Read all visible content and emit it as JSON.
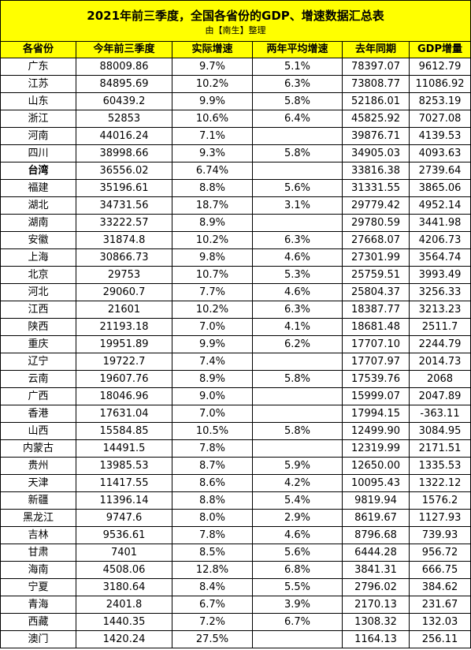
{
  "title": "2021年前三季度，全国各省份的GDP、增速数据汇总表",
  "subtitle": "由【南生】整理",
  "headers": [
    "各省份",
    "今年前三季度",
    "实际增速",
    "两年平均增速",
    "去年同期",
    "GDP增量"
  ],
  "rows": [
    {
      "prov": "广东",
      "gdp": "88009.86",
      "rate": "9.7%",
      "avg": "5.1%",
      "last": "78397.07",
      "inc": "9612.79"
    },
    {
      "prov": "江苏",
      "gdp": "84895.69",
      "rate": "10.2%",
      "avg": "6.3%",
      "last": "73808.77",
      "inc": "11086.92"
    },
    {
      "prov": "山东",
      "gdp": "60439.2",
      "rate": "9.9%",
      "avg": "5.8%",
      "last": "52186.01",
      "inc": "8253.19"
    },
    {
      "prov": "浙江",
      "gdp": "52853",
      "rate": "10.6%",
      "avg": "6.4%",
      "last": "45825.92",
      "inc": "7027.08"
    },
    {
      "prov": "河南",
      "gdp": "44016.24",
      "rate": "7.1%",
      "avg": "",
      "last": "39876.71",
      "inc": "4139.53"
    },
    {
      "prov": "四川",
      "gdp": "38998.66",
      "rate": "9.3%",
      "avg": "5.8%",
      "last": "34905.03",
      "inc": "4093.63"
    },
    {
      "prov": "台湾",
      "gdp": "36556.02",
      "rate": "6.74%",
      "avg": "",
      "last": "33816.38",
      "inc": "2739.64",
      "bold": true
    },
    {
      "prov": "福建",
      "gdp": "35196.61",
      "rate": "8.8%",
      "avg": "5.6%",
      "last": "31331.55",
      "inc": "3865.06"
    },
    {
      "prov": "湖北",
      "gdp": "34731.56",
      "rate": "18.7%",
      "avg": "3.1%",
      "last": "29779.42",
      "inc": "4952.14"
    },
    {
      "prov": "湖南",
      "gdp": "33222.57",
      "rate": "8.9%",
      "avg": "",
      "last": "29780.59",
      "inc": "3441.98"
    },
    {
      "prov": "安徽",
      "gdp": "31874.8",
      "rate": "10.2%",
      "avg": "6.3%",
      "last": "27668.07",
      "inc": "4206.73"
    },
    {
      "prov": "上海",
      "gdp": "30866.73",
      "rate": "9.8%",
      "avg": "4.6%",
      "last": "27301.99",
      "inc": "3564.74"
    },
    {
      "prov": "北京",
      "gdp": "29753",
      "rate": "10.7%",
      "avg": "5.3%",
      "last": "25759.51",
      "inc": "3993.49"
    },
    {
      "prov": "河北",
      "gdp": "29060.7",
      "rate": "7.7%",
      "avg": "4.6%",
      "last": "25804.37",
      "inc": "3256.33"
    },
    {
      "prov": "江西",
      "gdp": "21601",
      "rate": "10.2%",
      "avg": "6.3%",
      "last": "18387.77",
      "inc": "3213.23"
    },
    {
      "prov": "陕西",
      "gdp": "21193.18",
      "rate": "7.0%",
      "avg": "4.1%",
      "last": "18681.48",
      "inc": "2511.7"
    },
    {
      "prov": "重庆",
      "gdp": "19951.89",
      "rate": "9.9%",
      "avg": "6.2%",
      "last": "17707.10",
      "inc": "2244.79"
    },
    {
      "prov": "辽宁",
      "gdp": "19722.7",
      "rate": "7.4%",
      "avg": "",
      "last": "17707.97",
      "inc": "2014.73"
    },
    {
      "prov": "云南",
      "gdp": "19607.76",
      "rate": "8.9%",
      "avg": "5.8%",
      "last": "17539.76",
      "inc": "2068"
    },
    {
      "prov": "广西",
      "gdp": "18046.96",
      "rate": "9.0%",
      "avg": "",
      "last": "15999.07",
      "inc": "2047.89"
    },
    {
      "prov": "香港",
      "gdp": "17631.04",
      "rate": "7.0%",
      "avg": "",
      "last": "17994.15",
      "inc": "-363.11"
    },
    {
      "prov": "山西",
      "gdp": "15584.85",
      "rate": "10.5%",
      "avg": "5.8%",
      "last": "12499.90",
      "inc": "3084.95"
    },
    {
      "prov": "内蒙古",
      "gdp": "14491.5",
      "rate": "7.8%",
      "avg": "",
      "last": "12319.99",
      "inc": "2171.51"
    },
    {
      "prov": "贵州",
      "gdp": "13985.53",
      "rate": "8.7%",
      "avg": "5.9%",
      "last": "12650.00",
      "inc": "1335.53"
    },
    {
      "prov": "天津",
      "gdp": "11417.55",
      "rate": "8.6%",
      "avg": "4.2%",
      "last": "10095.43",
      "inc": "1322.12"
    },
    {
      "prov": "新疆",
      "gdp": "11396.14",
      "rate": "8.8%",
      "avg": "5.4%",
      "last": "9819.94",
      "inc": "1576.2"
    },
    {
      "prov": "黑龙江",
      "gdp": "9747.6",
      "rate": "8.0%",
      "avg": "2.9%",
      "last": "8619.67",
      "inc": "1127.93"
    },
    {
      "prov": "吉林",
      "gdp": "9536.61",
      "rate": "7.8%",
      "avg": "4.6%",
      "last": "8796.68",
      "inc": "739.93"
    },
    {
      "prov": "甘肃",
      "gdp": "7401",
      "rate": "8.5%",
      "avg": "5.6%",
      "last": "6444.28",
      "inc": "956.72"
    },
    {
      "prov": "海南",
      "gdp": "4508.06",
      "rate": "12.8%",
      "avg": "6.8%",
      "last": "3841.31",
      "inc": "666.75"
    },
    {
      "prov": "宁夏",
      "gdp": "3180.64",
      "rate": "8.4%",
      "avg": "5.5%",
      "last": "2796.02",
      "inc": "384.62"
    },
    {
      "prov": "青海",
      "gdp": "2401.8",
      "rate": "6.7%",
      "avg": "3.9%",
      "last": "2170.13",
      "inc": "231.67"
    },
    {
      "prov": "西藏",
      "gdp": "1440.35",
      "rate": "7.2%",
      "avg": "6.7%",
      "last": "1308.32",
      "inc": "132.03"
    },
    {
      "prov": "澳门",
      "gdp": "1420.24",
      "rate": "27.5%",
      "avg": "",
      "last": "1164.13",
      "inc": "256.11"
    }
  ],
  "colors": {
    "header_bg": "#ffff00",
    "border": "#000000"
  }
}
